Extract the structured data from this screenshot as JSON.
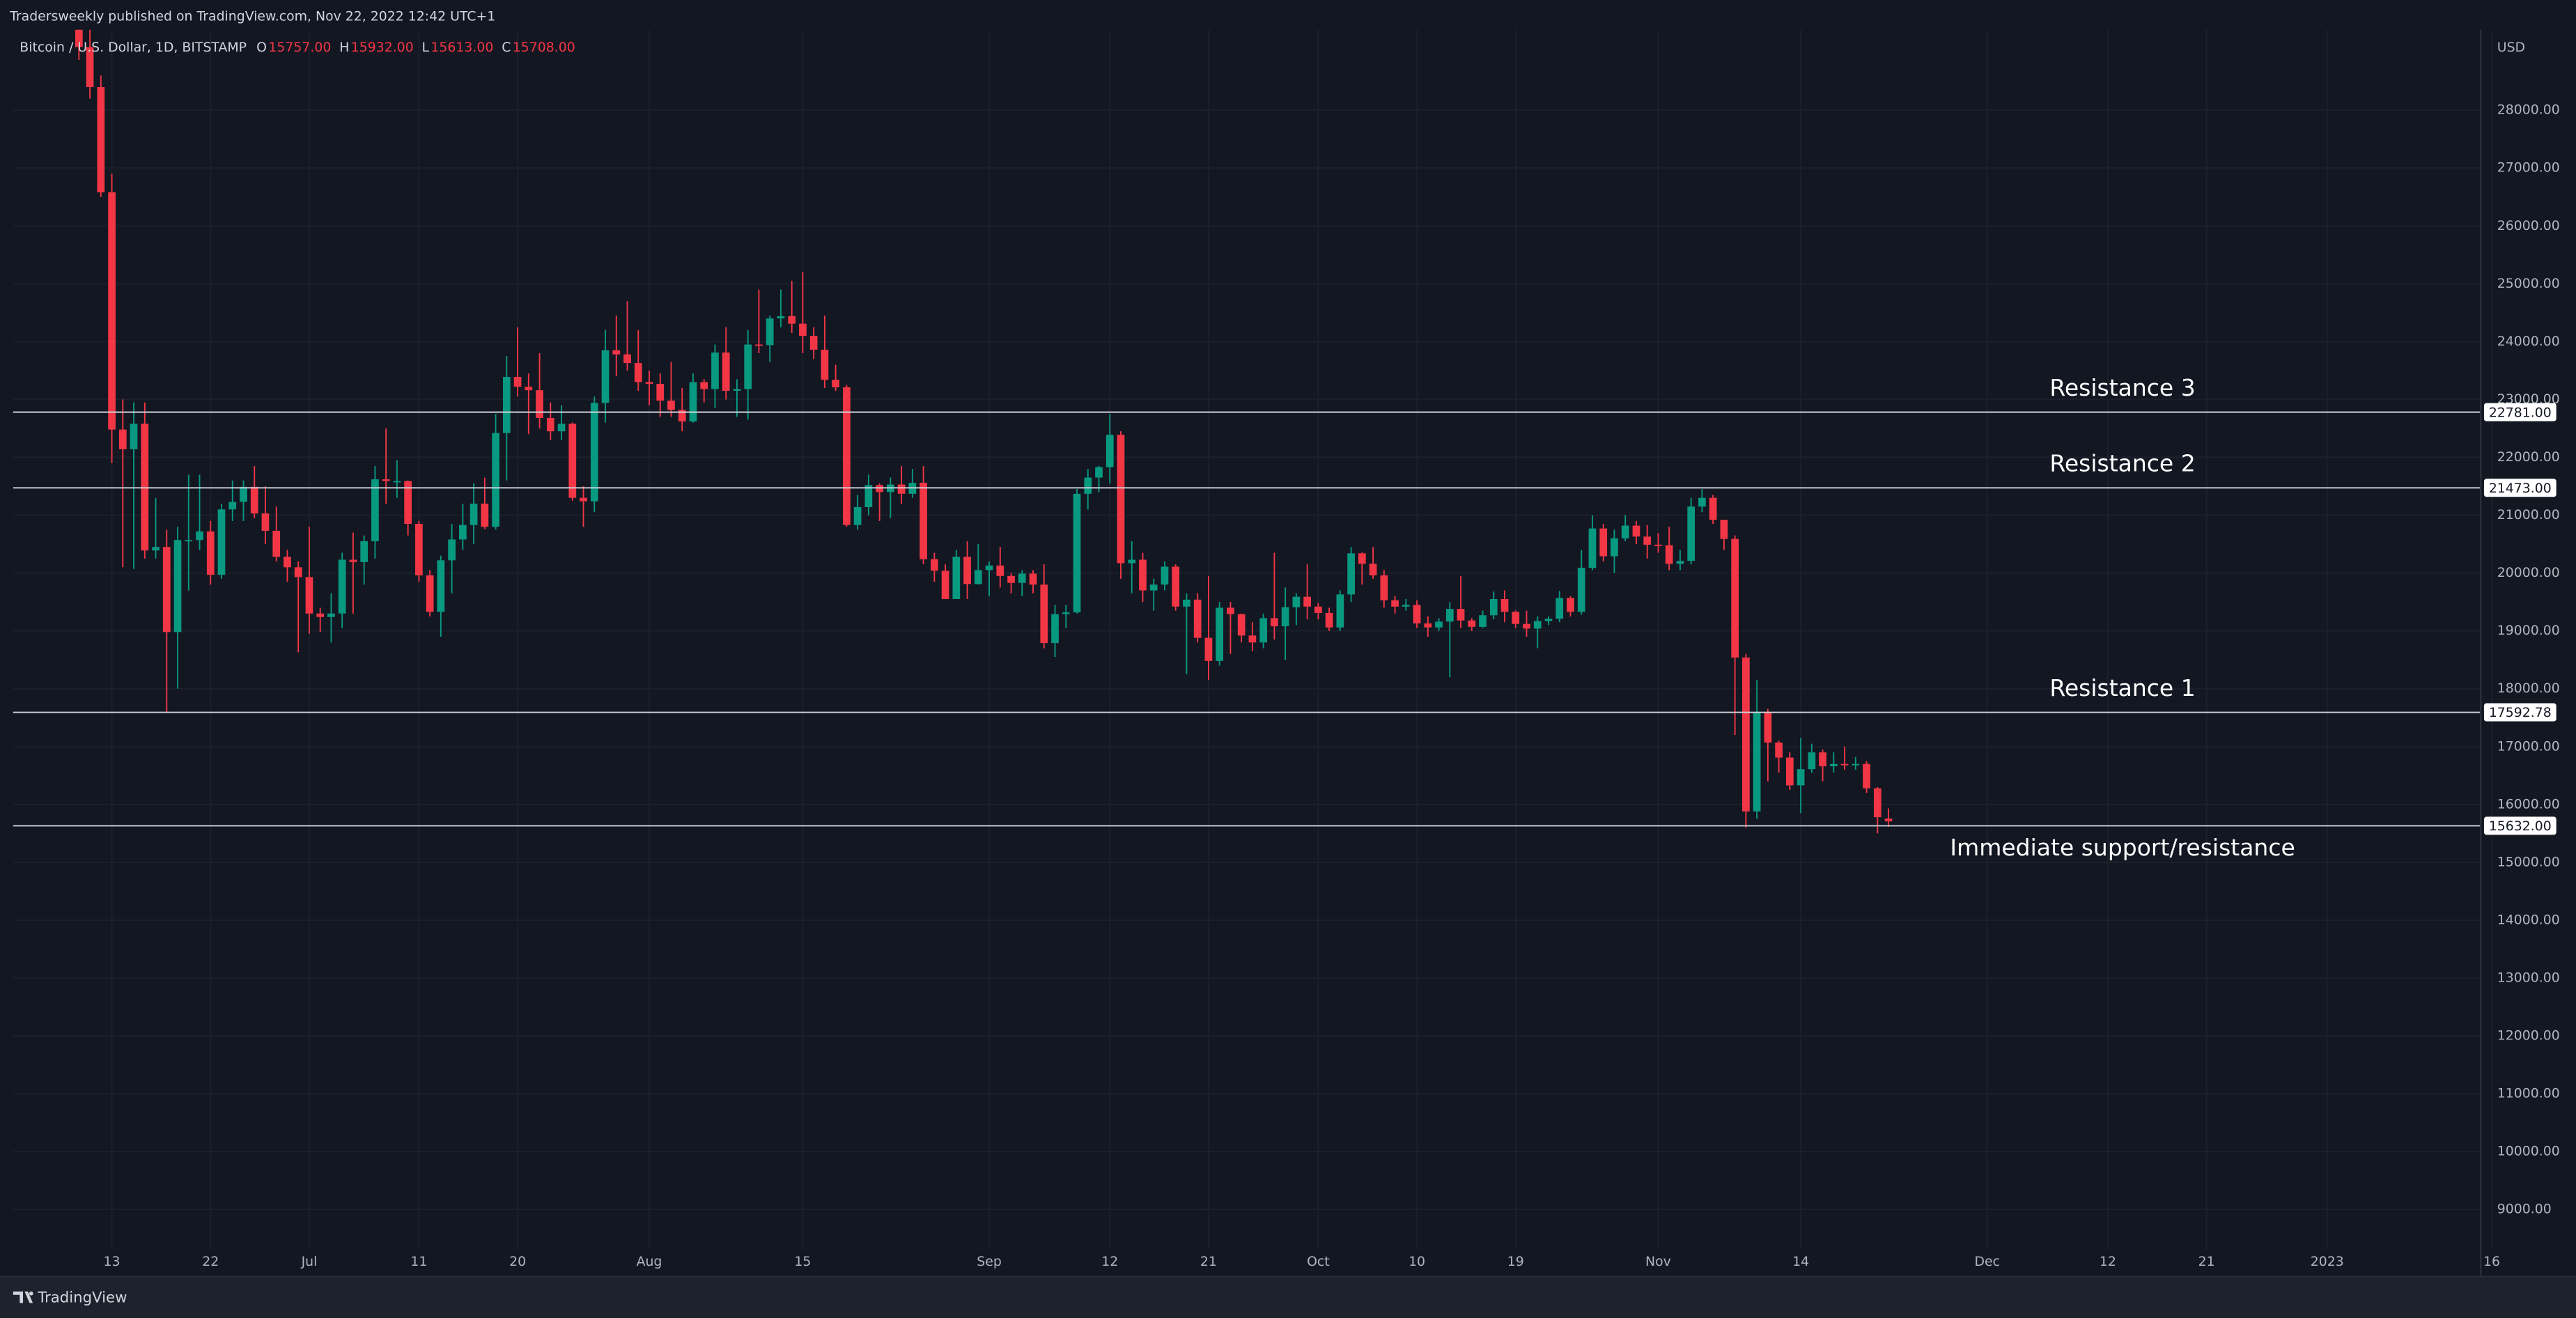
{
  "chart_data": {
    "type": "candlestick",
    "publisher_note": "Tradersweekly published on TradingView.com, Nov 22, 2022 12:42 UTC+1",
    "symbol": "Bitcoin / U.S. Dollar, 1D, BITSTAMP",
    "ohlc_legend": [
      {
        "key": "O",
        "label": "15757.00"
      },
      {
        "key": "H",
        "label": "15932.00"
      },
      {
        "key": "L",
        "label": "15613.00"
      },
      {
        "key": "C",
        "label": "15708.00"
      }
    ],
    "currency": "USD",
    "brand": "TradingView",
    "up_color": "#089981",
    "down_color": "#f23645",
    "grid": true,
    "xlim": [
      "2022-06-04",
      "2023-01-15"
    ],
    "ylim": [
      8320,
      29390
    ],
    "yticks": [
      {
        "value": 9000,
        "label": "9000.00"
      },
      {
        "value": 10000,
        "label": "10000.00"
      },
      {
        "value": 11000,
        "label": "11000.00"
      },
      {
        "value": 12000,
        "label": "12000.00"
      },
      {
        "value": 13000,
        "label": "13000.00"
      },
      {
        "value": 14000,
        "label": "14000.00"
      },
      {
        "value": 15000,
        "label": "15000.00"
      },
      {
        "value": 16000,
        "label": "16000.00"
      },
      {
        "value": 17000,
        "label": "17000.00"
      },
      {
        "value": 18000,
        "label": "18000.00"
      },
      {
        "value": 19000,
        "label": "19000.00"
      },
      {
        "value": 20000,
        "label": "20000.00"
      },
      {
        "value": 21000,
        "label": "21000.00"
      },
      {
        "value": 22000,
        "label": "22000.00"
      },
      {
        "value": 23000,
        "label": "23000.00"
      },
      {
        "value": 24000,
        "label": "24000.00"
      },
      {
        "value": 25000,
        "label": "25000.00"
      },
      {
        "value": 26000,
        "label": "26000.00"
      },
      {
        "value": 27000,
        "label": "27000.00"
      },
      {
        "value": 28000,
        "label": "28000.00"
      }
    ],
    "xticks": [
      {
        "value": "2022-06-13",
        "label": "13"
      },
      {
        "value": "2022-06-22",
        "label": "22"
      },
      {
        "value": "2022-07-01",
        "label": "Jul"
      },
      {
        "value": "2022-07-11",
        "label": "11"
      },
      {
        "value": "2022-07-20",
        "label": "20"
      },
      {
        "value": "2022-08-01",
        "label": "Aug"
      },
      {
        "value": "2022-08-15",
        "label": "15"
      },
      {
        "value": "2022-09-01",
        "label": "Sep"
      },
      {
        "value": "2022-09-12",
        "label": "12"
      },
      {
        "value": "2022-09-21",
        "label": "21"
      },
      {
        "value": "2022-10-01",
        "label": "Oct"
      },
      {
        "value": "2022-10-10",
        "label": "10"
      },
      {
        "value": "2022-10-19",
        "label": "19"
      },
      {
        "value": "2022-11-01",
        "label": "Nov"
      },
      {
        "value": "2022-11-14",
        "label": "14"
      },
      {
        "value": "2022-12-01",
        "label": "Dec"
      },
      {
        "value": "2022-12-12",
        "label": "12"
      },
      {
        "value": "2022-12-21",
        "label": "21"
      },
      {
        "value": "2023-01-01",
        "label": "2023"
      },
      {
        "value": "2023-01-16",
        "label": "16"
      }
    ],
    "levels": [
      {
        "name": "Resistance 3",
        "value": 22781,
        "label": "22781.00"
      },
      {
        "name": "Resistance 2",
        "value": 21473,
        "label": "21473.00"
      },
      {
        "name": "Resistance 1",
        "value": 17592.78,
        "label": "17592.78"
      },
      {
        "name": "Immediate support/resistance",
        "value": 15632,
        "label": "15632.00"
      }
    ],
    "x": [
      "2022-06-10",
      "2022-06-11",
      "2022-06-12",
      "2022-06-13",
      "2022-06-14",
      "2022-06-15",
      "2022-06-16",
      "2022-06-17",
      "2022-06-18",
      "2022-06-19",
      "2022-06-20",
      "2022-06-21",
      "2022-06-22",
      "2022-06-23",
      "2022-06-24",
      "2022-06-25",
      "2022-06-26",
      "2022-06-27",
      "2022-06-28",
      "2022-06-29",
      "2022-06-30",
      "2022-07-01",
      "2022-07-02",
      "2022-07-03",
      "2022-07-04",
      "2022-07-05",
      "2022-07-06",
      "2022-07-07",
      "2022-07-08",
      "2022-07-09",
      "2022-07-10",
      "2022-07-11",
      "2022-07-12",
      "2022-07-13",
      "2022-07-14",
      "2022-07-15",
      "2022-07-16",
      "2022-07-17",
      "2022-07-18",
      "2022-07-19",
      "2022-07-20",
      "2022-07-21",
      "2022-07-22",
      "2022-07-23",
      "2022-07-24",
      "2022-07-25",
      "2022-07-26",
      "2022-07-27",
      "2022-07-28",
      "2022-07-29",
      "2022-07-30",
      "2022-07-31",
      "2022-08-01",
      "2022-08-02",
      "2022-08-03",
      "2022-08-04",
      "2022-08-05",
      "2022-08-06",
      "2022-08-07",
      "2022-08-08",
      "2022-08-09",
      "2022-08-10",
      "2022-08-11",
      "2022-08-12",
      "2022-08-13",
      "2022-08-14",
      "2022-08-15",
      "2022-08-16",
      "2022-08-17",
      "2022-08-18",
      "2022-08-19",
      "2022-08-20",
      "2022-08-21",
      "2022-08-22",
      "2022-08-23",
      "2022-08-24",
      "2022-08-25",
      "2022-08-26",
      "2022-08-27",
      "2022-08-28",
      "2022-08-29",
      "2022-08-30",
      "2022-08-31",
      "2022-09-01",
      "2022-09-02",
      "2022-09-03",
      "2022-09-04",
      "2022-09-05",
      "2022-09-06",
      "2022-09-07",
      "2022-09-08",
      "2022-09-09",
      "2022-09-10",
      "2022-09-11",
      "2022-09-12",
      "2022-09-13",
      "2022-09-14",
      "2022-09-15",
      "2022-09-16",
      "2022-09-17",
      "2022-09-18",
      "2022-09-19",
      "2022-09-20",
      "2022-09-21",
      "2022-09-22",
      "2022-09-23",
      "2022-09-24",
      "2022-09-25",
      "2022-09-26",
      "2022-09-27",
      "2022-09-28",
      "2022-09-29",
      "2022-09-30",
      "2022-10-01",
      "2022-10-02",
      "2022-10-03",
      "2022-10-04",
      "2022-10-05",
      "2022-10-06",
      "2022-10-07",
      "2022-10-08",
      "2022-10-09",
      "2022-10-10",
      "2022-10-11",
      "2022-10-12",
      "2022-10-13",
      "2022-10-14",
      "2022-10-15",
      "2022-10-16",
      "2022-10-17",
      "2022-10-18",
      "2022-10-19",
      "2022-10-20",
      "2022-10-21",
      "2022-10-22",
      "2022-10-23",
      "2022-10-24",
      "2022-10-25",
      "2022-10-26",
      "2022-10-27",
      "2022-10-28",
      "2022-10-29",
      "2022-10-30",
      "2022-10-31",
      "2022-11-01",
      "2022-11-02",
      "2022-11-03",
      "2022-11-04",
      "2022-11-05",
      "2022-11-06",
      "2022-11-07",
      "2022-11-08",
      "2022-11-09",
      "2022-11-10",
      "2022-11-11",
      "2022-11-12",
      "2022-11-13",
      "2022-11-14",
      "2022-11-15",
      "2022-11-16",
      "2022-11-17",
      "2022-11-18",
      "2022-11-19",
      "2022-11-20",
      "2022-11-21",
      "2022-11-22"
    ],
    "open": [
      30100,
      29090,
      28400,
      26580,
      22480,
      22140,
      22580,
      20390,
      20450,
      18980,
      20570,
      20570,
      20720,
      19970,
      21100,
      21230,
      21490,
      21030,
      20730,
      20280,
      20100,
      19930,
      19300,
      19240,
      19300,
      20230,
      20190,
      20550,
      21620,
      21590,
      21590,
      20850,
      19960,
      19330,
      20220,
      20580,
      20830,
      21200,
      20800,
      22420,
      23390,
      23220,
      23160,
      22680,
      22450,
      22580,
      21300,
      21240,
      22940,
      23850,
      23780,
      23630,
      23300,
      23270,
      22980,
      22820,
      22620,
      23300,
      23180,
      23810,
      23150,
      23180,
      23950,
      23940,
      24400,
      24440,
      24310,
      24100,
      23860,
      23340,
      23210,
      20830,
      21140,
      21520,
      21400,
      21530,
      21370,
      21560,
      20240,
      20040,
      19550,
      20280,
      19810,
      20050,
      20130,
      19950,
      19830,
      19990,
      19800,
      18790,
      19290,
      19320,
      21370,
      21650,
      21830,
      22390,
      20170,
      20230,
      19700,
      19800,
      20110,
      19420,
      19540,
      18880,
      18480,
      19400,
      19290,
      18920,
      18800,
      19220,
      19080,
      19410,
      19590,
      19420,
      19310,
      19060,
      19630,
      20340,
      20160,
      19960,
      19530,
      19420,
      19450,
      19130,
      19060,
      19160,
      19380,
      19180,
      19070,
      19270,
      19550,
      19330,
      19120,
      19040,
      19170,
      19210,
      19570,
      19330,
      20090,
      20770,
      20290,
      20600,
      20820,
      20630,
      20490,
      20480,
      20160,
      20210,
      21150,
      21300,
      20920,
      20590,
      18540,
      15880,
      17590,
      17070,
      16810,
      16330,
      16610,
      16900,
      16660,
      16700,
      16690,
      16700,
      16280,
      15757
    ],
    "high": [
      30350,
      29450,
      28600,
      26900,
      23000,
      22950,
      22950,
      21300,
      20750,
      20800,
      21700,
      21700,
      20900,
      21200,
      21600,
      21600,
      21850,
      21500,
      21150,
      20400,
      20200,
      20800,
      19400,
      19650,
      20350,
      20700,
      20650,
      21850,
      22500,
      21950,
      21600,
      20900,
      20050,
      20300,
      20850,
      21200,
      21550,
      21650,
      22750,
      23750,
      24250,
      23450,
      23800,
      22950,
      22900,
      22600,
      21500,
      23050,
      24200,
      24450,
      24700,
      24200,
      23500,
      23450,
      23650,
      23200,
      23450,
      23350,
      23950,
      24250,
      23350,
      24200,
      24900,
      24450,
      24900,
      25050,
      25200,
      24250,
      24450,
      23600,
      23250,
      21350,
      21700,
      21550,
      21650,
      21850,
      21800,
      21850,
      20350,
      20150,
      20400,
      20550,
      20500,
      20200,
      20450,
      20000,
      20050,
      20050,
      20150,
      19450,
      19450,
      21450,
      21800,
      21850,
      22750,
      22450,
      20550,
      20350,
      19900,
      20200,
      20150,
      19650,
      19650,
      19950,
      19500,
      19500,
      19300,
      19150,
      19300,
      20350,
      19750,
      19650,
      20150,
      19480,
      19400,
      19700,
      20450,
      20360,
      20450,
      20050,
      19600,
      19550,
      19530,
      19250,
      19220,
      19500,
      19950,
      19220,
      19350,
      19680,
      19700,
      19350,
      19350,
      19250,
      19250,
      19690,
      19600,
      20400,
      21000,
      20850,
      20750,
      21000,
      20900,
      20830,
      20690,
      20800,
      20400,
      21300,
      21450,
      21350,
      20900,
      20650,
      18600,
      18150,
      17650,
      17100,
      16900,
      17150,
      17050,
      16950,
      16900,
      17000,
      16820,
      16750,
      16300,
      15932
    ],
    "low": [
      28870,
      28200,
      26500,
      21900,
      20100,
      20070,
      20250,
      20250,
      17600,
      18000,
      19700,
      20400,
      19800,
      19900,
      20900,
      20900,
      20950,
      20500,
      20200,
      19850,
      18630,
      18950,
      18980,
      18800,
      19050,
      19300,
      19800,
      20250,
      21200,
      21300,
      20650,
      19850,
      19250,
      18900,
      19650,
      20400,
      20500,
      20760,
      20750,
      21600,
      23050,
      22400,
      22500,
      22300,
      22300,
      21250,
      20800,
      21050,
      22600,
      23400,
      23500,
      23150,
      22900,
      22700,
      22700,
      22450,
      22600,
      22950,
      22850,
      23000,
      22700,
      22650,
      23800,
      23650,
      24250,
      24150,
      23800,
      23700,
      23200,
      23150,
      20800,
      20750,
      21000,
      20900,
      20950,
      21200,
      21300,
      20150,
      19850,
      19550,
      19550,
      19550,
      19800,
      19600,
      19750,
      19650,
      19600,
      19650,
      18700,
      18550,
      19050,
      19300,
      21100,
      21400,
      21550,
      19900,
      19650,
      19500,
      19350,
      19700,
      19350,
      18250,
      18800,
      18150,
      18400,
      18600,
      18800,
      18650,
      18700,
      18850,
      18500,
      19100,
      19200,
      19200,
      19000,
      19000,
      19500,
      19800,
      19900,
      19400,
      19300,
      19350,
      19050,
      18900,
      19000,
      18200,
      19050,
      19000,
      19050,
      19200,
      19150,
      19050,
      18900,
      18700,
      19100,
      19150,
      19250,
      19280,
      20050,
      20200,
      20000,
      20550,
      20500,
      20250,
      20350,
      20050,
      20050,
      20150,
      21050,
      20850,
      20400,
      17200,
      15600,
      15750,
      16400,
      16550,
      16250,
      15850,
      16550,
      16400,
      16550,
      16600,
      16600,
      16200,
      15500,
      15613
    ],
    "close": [
      29090,
      28400,
      26580,
      22480,
      22140,
      22580,
      20390,
      20450,
      18980,
      20570,
      20570,
      20720,
      19970,
      21100,
      21230,
      21490,
      21030,
      20730,
      20280,
      20100,
      19930,
      19300,
      19240,
      19300,
      20230,
      20190,
      20550,
      21620,
      21590,
      21590,
      20850,
      19960,
      19330,
      20220,
      20580,
      20830,
      21200,
      20800,
      22420,
      23390,
      23220,
      23160,
      22680,
      22450,
      22580,
      21300,
      21240,
      22940,
      23850,
      23780,
      23630,
      23300,
      23270,
      22980,
      22820,
      22620,
      23300,
      23180,
      23810,
      23150,
      23180,
      23950,
      23940,
      24400,
      24440,
      24310,
      24100,
      23860,
      23340,
      23210,
      20830,
      21140,
      21520,
      21400,
      21530,
      21370,
      21560,
      20240,
      20040,
      19550,
      20280,
      19810,
      20050,
      20130,
      19950,
      19830,
      19990,
      19800,
      18790,
      19290,
      19320,
      21370,
      21650,
      21830,
      22390,
      20170,
      20230,
      19700,
      19800,
      20110,
      19420,
      19540,
      18880,
      18480,
      19400,
      19290,
      18920,
      18800,
      19220,
      19080,
      19410,
      19590,
      19420,
      19310,
      19060,
      19630,
      20340,
      20160,
      19960,
      19530,
      19420,
      19450,
      19130,
      19060,
      19160,
      19380,
      19180,
      19070,
      19270,
      19550,
      19330,
      19120,
      19040,
      19170,
      19210,
      19570,
      19330,
      20090,
      20770,
      20290,
      20600,
      20820,
      20630,
      20490,
      20480,
      20160,
      20210,
      21150,
      21300,
      20920,
      20590,
      18540,
      15880,
      17590,
      17070,
      16810,
      16330,
      16610,
      16900,
      16660,
      16700,
      16690,
      16700,
      16280,
      15780,
      15708
    ]
  }
}
